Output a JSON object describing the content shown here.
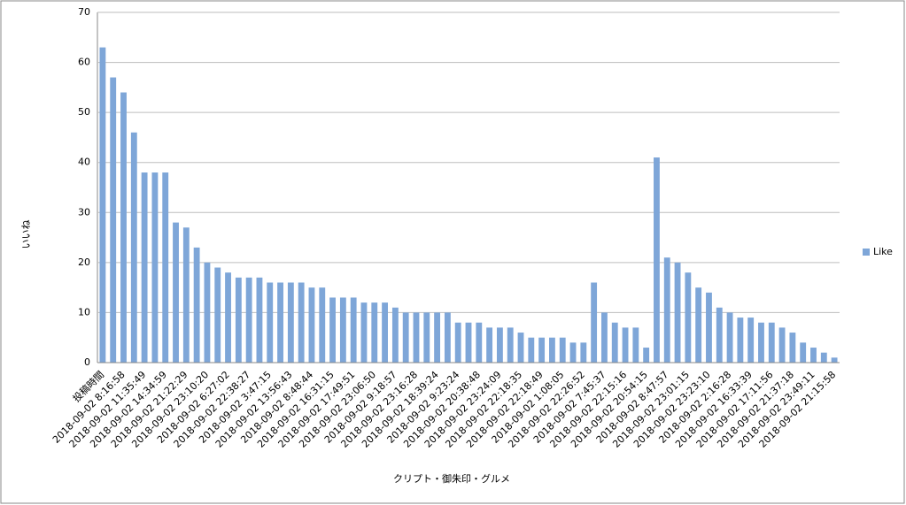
{
  "chart_data": {
    "type": "bar",
    "x_label": "クリプト・御朱印・グルメ",
    "y_label": "いいね",
    "categories": [
      "投稿時間",
      null,
      "2018-09-02 8:16:58",
      null,
      "2018-09-02 11:35:49",
      null,
      "2018-09-02 14:34:59",
      null,
      "2018-09-02 21:22:29",
      null,
      "2018-09-02 23:10:20",
      null,
      "2018-09-02 6:27:02",
      null,
      "2018-09-02 22:38:27",
      null,
      "2018-09-02 3:47:15",
      null,
      "2018-09-02 13:56:43",
      null,
      "2018-09-02 8:48:44",
      null,
      "2018-09-02 16:31:15",
      null,
      "2018-09-02 17:49:51",
      null,
      "2018-09-02 23:06:50",
      null,
      "2018-09-02 9:18:57",
      null,
      "2018-09-02 23:16:28",
      null,
      "2018-09-02 18:39:24",
      null,
      "2018-09-02 9:23:24",
      null,
      "2018-09-02 20:38:48",
      null,
      "2018-09-02 23:24:09",
      null,
      "2018-09-02 22:18:35",
      null,
      "2018-09-02 22:18:49",
      null,
      "2018-09-02 1:08:05",
      null,
      "2018-09-02 22:26:52",
      null,
      "2018-09-02 7:45:37",
      null,
      "2018-09-02 22:15:16",
      null,
      "2018-09-02 20:54:15",
      null,
      "2018-09-02 8:47:57",
      null,
      "2018-09-02 23:01:15",
      null,
      "2018-09-02 23:23:10",
      null,
      "2018-09-02 2:16:28",
      null,
      "2018-09-02 16:33:39",
      null,
      "2018-09-02 17:11:56",
      null,
      "2018-09-02 21:37:18",
      null,
      "2018-09-02 23:49:11",
      null,
      "2018-09-02 21:15:58"
    ],
    "series": [
      {
        "name": "Like",
        "color": "#7ea6d8",
        "values": [
          63,
          57,
          54,
          46,
          38,
          38,
          38,
          28,
          27,
          23,
          20,
          19,
          18,
          17,
          17,
          17,
          16,
          16,
          16,
          16,
          15,
          15,
          13,
          13,
          13,
          12,
          12,
          12,
          11,
          10,
          10,
          10,
          10,
          10,
          8,
          8,
          8,
          7,
          7,
          7,
          6,
          5,
          5,
          5,
          5,
          4,
          4,
          16,
          10,
          8,
          7,
          7,
          3,
          41,
          21,
          20,
          18,
          15,
          14,
          11,
          10,
          9,
          9,
          8,
          8,
          7,
          6,
          4,
          3,
          2,
          1
        ]
      }
    ],
    "ylim": [
      0,
      70
    ],
    "yticks": [
      0,
      10,
      20,
      30,
      40,
      50,
      60,
      70
    ],
    "grid": true,
    "legend": "right"
  }
}
